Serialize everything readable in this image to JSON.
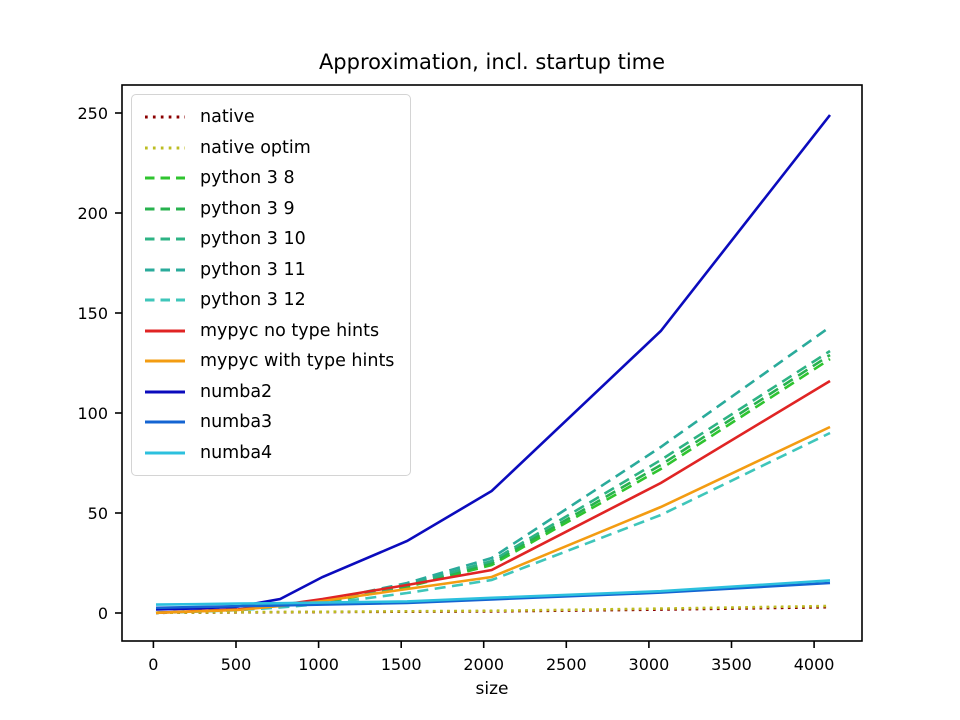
{
  "figure": {
    "background": "#ffffff",
    "spine_color": "#000000",
    "text_color": "#000000"
  },
  "chart_data": {
    "type": "line",
    "title": "Approximation, incl. startup time",
    "xlabel": "size",
    "ylabel": "",
    "grid": false,
    "legend_position": "upper-left",
    "xlim": [
      -190,
      4290
    ],
    "ylim": [
      -14,
      264
    ],
    "x_ticks": [
      0,
      500,
      1000,
      1500,
      2000,
      2500,
      3000,
      3500,
      4000
    ],
    "y_ticks": [
      0,
      50,
      100,
      150,
      200,
      250
    ],
    "x": [
      16,
      256,
      512,
      768,
      1024,
      1536,
      2048,
      3072,
      4096
    ],
    "series": [
      {
        "name": "native",
        "color": "#8b0000",
        "style": "dotted",
        "values": [
          0.1,
          0.2,
          0.3,
          0.4,
          0.5,
          0.65,
          0.8,
          1.7,
          2.9
        ]
      },
      {
        "name": "native optim",
        "color": "#bcbd22",
        "style": "dotted",
        "values": [
          0.1,
          0.25,
          0.4,
          0.5,
          0.6,
          0.85,
          1.1,
          2.2,
          3.5
        ]
      },
      {
        "name": "python 3 8",
        "color": "#2fc42f",
        "style": "dashed",
        "values": [
          0.1,
          0.8,
          1.6,
          3.2,
          5.0,
          13,
          24,
          72,
          127
        ]
      },
      {
        "name": "python 3 9",
        "color": "#27b24e",
        "style": "dashed",
        "values": [
          0.1,
          0.85,
          1.7,
          3.4,
          5.3,
          13.5,
          25,
          74,
          129
        ]
      },
      {
        "name": "python 3 10",
        "color": "#2db384",
        "style": "dashed",
        "values": [
          0.1,
          0.9,
          1.8,
          3.6,
          5.6,
          14,
          26,
          76.5,
          131
        ]
      },
      {
        "name": "python 3 11",
        "color": "#2aab9b",
        "style": "dashed",
        "values": [
          0.1,
          1.0,
          2.0,
          3.9,
          6.0,
          15,
          27.5,
          83,
          143
        ]
      },
      {
        "name": "python 3 12",
        "color": "#3fc6ba",
        "style": "dashed",
        "values": [
          0.1,
          0.7,
          1.4,
          2.8,
          4.5,
          10,
          16.5,
          49,
          90
        ]
      },
      {
        "name": "mypyc no type hints",
        "color": "#e02424",
        "style": "solid",
        "values": [
          0.1,
          0.9,
          1.8,
          4.0,
          7.0,
          14,
          21.5,
          65,
          116
        ]
      },
      {
        "name": "mypyc with type hints",
        "color": "#f39c12",
        "style": "solid",
        "values": [
          0.1,
          0.8,
          1.5,
          3.5,
          6.0,
          12,
          18,
          53,
          93
        ]
      },
      {
        "name": "numba2",
        "color": "#0b0bbd",
        "style": "solid",
        "values": [
          1.8,
          2.3,
          3.2,
          7.0,
          18,
          36,
          61,
          141,
          249
        ]
      },
      {
        "name": "numba3",
        "color": "#1464d2",
        "style": "solid",
        "values": [
          2.6,
          3.0,
          3.4,
          3.8,
          4.2,
          5.0,
          6.8,
          10.2,
          15.0
        ]
      },
      {
        "name": "numba4",
        "color": "#2cc0de",
        "style": "solid",
        "values": [
          4.2,
          4.4,
          4.7,
          4.9,
          5.2,
          5.8,
          7.6,
          10.9,
          16.3
        ]
      }
    ]
  }
}
